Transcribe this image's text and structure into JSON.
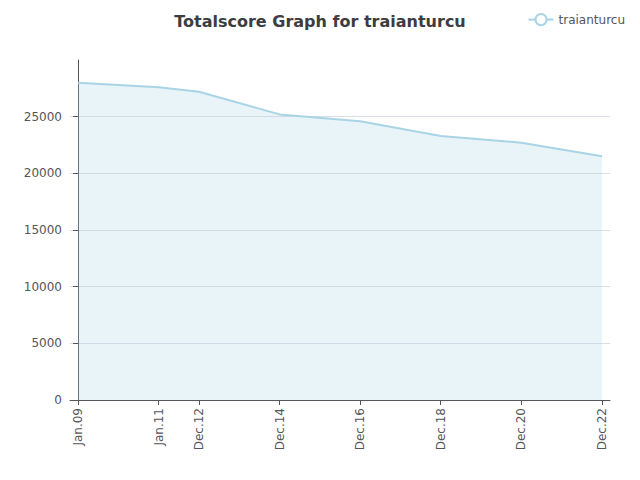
{
  "chart_data": {
    "type": "area",
    "title": "Totalscore Graph for traianturcu",
    "x": [
      0,
      2,
      3,
      5,
      7,
      9,
      11,
      13
    ],
    "series": [
      {
        "name": "traianturcu",
        "color": "#a8d4e6",
        "values": [
          28000,
          27600,
          27200,
          25200,
          24600,
          23300,
          22700,
          21500
        ]
      }
    ],
    "xlim": [
      -0.2,
      13.2
    ],
    "xticks": [
      {
        "value": 0,
        "label": "Jan.09"
      },
      {
        "value": 2,
        "label": "Jan.11"
      },
      {
        "value": 3,
        "label": "Dec.12"
      },
      {
        "value": 5,
        "label": "Dec.14"
      },
      {
        "value": 7,
        "label": "Dec.16"
      },
      {
        "value": 9,
        "label": "Dec.18"
      },
      {
        "value": 11,
        "label": "Dec.20"
      },
      {
        "value": 13,
        "label": "Dec.22"
      }
    ],
    "ylim": [
      0,
      30000
    ],
    "yticks": [
      0,
      5000,
      10000,
      15000,
      20000,
      25000
    ],
    "grid": true,
    "legend": "upper right"
  }
}
